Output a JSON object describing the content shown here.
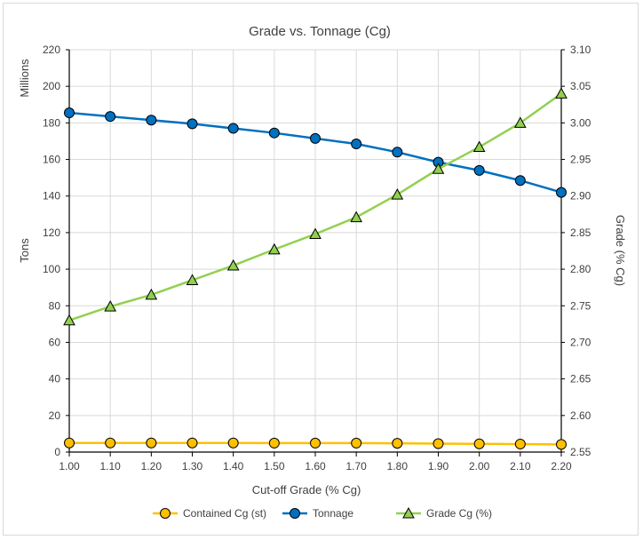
{
  "chart_data": {
    "type": "line",
    "title": "Grade vs. Tonnage (Cg)",
    "xlabel": "Cut-off Grade (% Cg)",
    "ylabel_left_unit": "Millions",
    "ylabel_left": "Tons",
    "ylabel_right": "Grade (% Cg)",
    "ylim_left": [
      0,
      220
    ],
    "ylim_right": [
      2.55,
      3.1
    ],
    "x": [
      "1.00",
      "1.10",
      "1.20",
      "1.30",
      "1.40",
      "1.50",
      "1.60",
      "1.70",
      "1.80",
      "1.90",
      "2.00",
      "2.10",
      "2.20"
    ],
    "left_ticks": [
      "0",
      "20",
      "40",
      "60",
      "80",
      "100",
      "120",
      "140",
      "160",
      "180",
      "200",
      "220"
    ],
    "right_ticks": [
      "2.55",
      "2.60",
      "2.65",
      "2.70",
      "2.75",
      "2.80",
      "2.85",
      "2.90",
      "2.95",
      "3.00",
      "3.05",
      "3.10"
    ],
    "grid": true,
    "legend_position": "bottom",
    "series": [
      {
        "name": "Contained Cg (st)",
        "axis": "left",
        "marker": "circle",
        "color": "#FFC000",
        "values": [
          5.0,
          5.0,
          5.0,
          5.0,
          5.0,
          4.9,
          4.9,
          4.9,
          4.8,
          4.6,
          4.5,
          4.4,
          4.2
        ]
      },
      {
        "name": "Tonnage",
        "axis": "left",
        "marker": "circle",
        "color": "#0070C0",
        "values": [
          185.5,
          183.5,
          181.5,
          179.5,
          177.0,
          174.5,
          171.5,
          168.5,
          164.0,
          158.5,
          154.0,
          148.5,
          142.0
        ]
      },
      {
        "name": "Grade Cg (%)",
        "axis": "right",
        "marker": "triangle",
        "color": "#92D050",
        "values": [
          2.73,
          2.749,
          2.765,
          2.785,
          2.805,
          2.827,
          2.848,
          2.871,
          2.902,
          2.937,
          2.967,
          3.0,
          3.04
        ]
      }
    ]
  }
}
